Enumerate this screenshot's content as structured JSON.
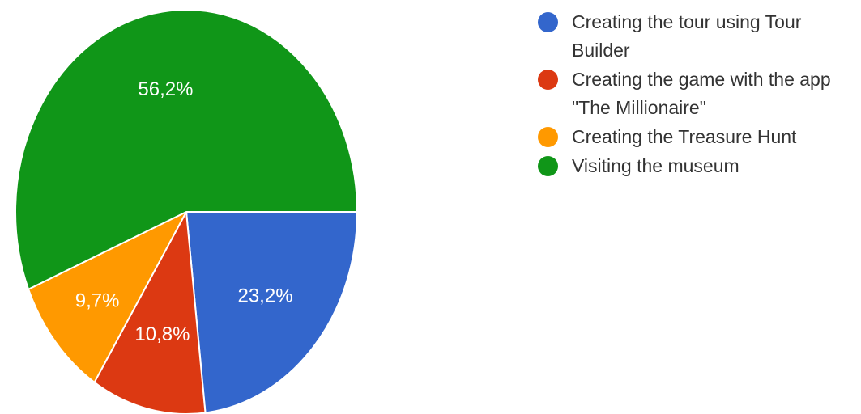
{
  "chart_data": {
    "type": "pie",
    "title": "",
    "slices": [
      {
        "label": "Creating the tour using Tour Builder",
        "value": 23.2,
        "display": "23,2%",
        "color": "#3366cc"
      },
      {
        "label": "Creating the game with the app \"The Millionaire\"",
        "value": 10.8,
        "display": "10,8%",
        "color": "#dc3912"
      },
      {
        "label": "Creating the Treasure Hunt",
        "value": 9.7,
        "display": "9,7%",
        "color": "#ff9900"
      },
      {
        "label": "Visiting the museum",
        "value": 56.2,
        "display": "56,2%",
        "color": "#109618"
      }
    ],
    "legend_position": "right",
    "start": "3 o'clock",
    "direction": "clockwise"
  }
}
